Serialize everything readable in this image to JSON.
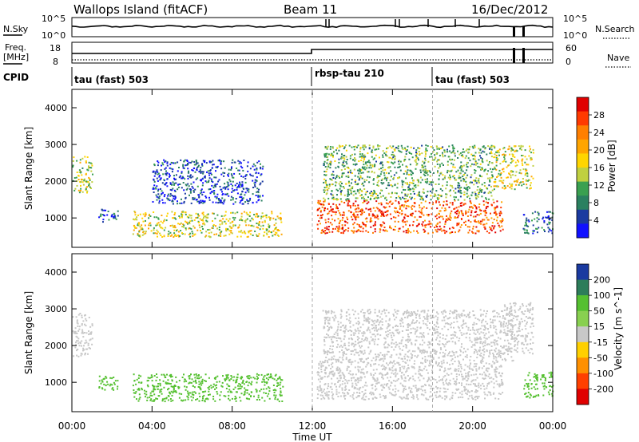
{
  "header": {
    "title": "Wallops Island (fitACF)",
    "beam": "Beam 11",
    "date": "16/Dec/2012"
  },
  "noise_panel": {
    "left_label": "N.Sky",
    "right_label": "N.Search",
    "left_ticks": [
      "10^5",
      "10^0"
    ],
    "right_ticks": [
      "10^5",
      "10^0"
    ]
  },
  "freq_panel": {
    "left_label_line1": "Freq.",
    "left_label_line2": "[MHz]",
    "right_label": "Nave",
    "left_ticks": [
      "18",
      "8"
    ],
    "right_ticks": [
      "60",
      "0"
    ]
  },
  "cpid_panel": {
    "label": "CPID",
    "segments": [
      {
        "name": "tau (fast) 503",
        "start_hour": 0
      },
      {
        "name": "rbsp-tau 210",
        "start_hour": 12
      },
      {
        "name": "tau (fast) 503",
        "start_hour": 18
      }
    ]
  },
  "power_colorbar": {
    "label": "Power [dB]",
    "ticks": [
      "28",
      "24",
      "20",
      "16",
      "12",
      "8",
      "4"
    ],
    "colors": [
      "#e00000",
      "#ff3a00",
      "#ff7f00",
      "#ffa500",
      "#ffd500",
      "#c0d040",
      "#3aa050",
      "#2a8060",
      "#1a3aa0",
      "#1010ff"
    ]
  },
  "velocity_colorbar": {
    "label": "Velocity [m s^-1]",
    "ticks": [
      "200",
      "100",
      "50",
      "15",
      "-15",
      "-50",
      "-100",
      "-200"
    ],
    "colors": [
      "#1a3aa0",
      "#2d7d5a",
      "#55c030",
      "#88d050",
      "#c8c8c8",
      "#ffd000",
      "#ff9000",
      "#ff4000",
      "#e00000"
    ]
  },
  "chart_data": [
    {
      "type": "heatmap",
      "name": "power",
      "ylabel": "Slant Range [km]",
      "xlabel": "Time UT",
      "xlim": [
        0,
        24
      ],
      "ylim": [
        200,
        4500
      ],
      "yticks": [
        1000,
        2000,
        3000,
        4000
      ],
      "x_tick_hours": [
        0,
        4,
        8,
        12,
        16,
        20,
        24
      ],
      "x_tick_labels": [
        "00:00",
        "04:00",
        "08:00",
        "12:00",
        "16:00",
        "20:00",
        "00:00"
      ],
      "regions": [
        {
          "t0": 0.0,
          "t1": 1.0,
          "r0": 1700,
          "r1": 2700,
          "value": 15
        },
        {
          "t0": 1.3,
          "t1": 2.3,
          "r0": 900,
          "r1": 1250,
          "value": 8
        },
        {
          "t0": 3.0,
          "t1": 10.5,
          "r0": 500,
          "r1": 1200,
          "value": 16
        },
        {
          "t0": 4.0,
          "t1": 9.5,
          "r0": 1400,
          "r1": 2600,
          "value": 6
        },
        {
          "t0": 12.2,
          "t1": 21.5,
          "r0": 600,
          "r1": 1500,
          "value": 25
        },
        {
          "t0": 12.5,
          "t1": 21.0,
          "r0": 1500,
          "r1": 3000,
          "value": 12
        },
        {
          "t0": 21.0,
          "t1": 23.0,
          "r0": 1800,
          "r1": 3000,
          "value": 16
        },
        {
          "t0": 22.5,
          "t1": 24.0,
          "r0": 600,
          "r1": 1200,
          "value": 8
        }
      ]
    },
    {
      "type": "heatmap",
      "name": "velocity",
      "ylabel": "Slant Range [km]",
      "xlabel": "Time UT",
      "xlim": [
        0,
        24
      ],
      "ylim": [
        200,
        4500
      ],
      "yticks": [
        1000,
        2000,
        3000,
        4000
      ],
      "x_tick_hours": [
        0,
        4,
        8,
        12,
        16,
        20,
        24
      ],
      "x_tick_labels": [
        "00:00",
        "04:00",
        "08:00",
        "12:00",
        "16:00",
        "20:00",
        "00:00"
      ],
      "regions": [
        {
          "t0": 0.0,
          "t1": 1.0,
          "r0": 1700,
          "r1": 2900,
          "value": 0
        },
        {
          "t0": 1.3,
          "t1": 2.3,
          "r0": 800,
          "r1": 1200,
          "value": 30
        },
        {
          "t0": 3.0,
          "t1": 10.5,
          "r0": 500,
          "r1": 1250,
          "value": 40
        },
        {
          "t0": 12.2,
          "t1": 21.5,
          "r0": 550,
          "r1": 1600,
          "value": 0
        },
        {
          "t0": 12.5,
          "t1": 22.0,
          "r0": 1600,
          "r1": 3000,
          "value": 0
        },
        {
          "t0": 21.5,
          "t1": 23.0,
          "r0": 1800,
          "r1": 3200,
          "value": 0
        },
        {
          "t0": 22.5,
          "t1": 24.0,
          "r0": 600,
          "r1": 1300,
          "value": 40
        }
      ]
    }
  ]
}
